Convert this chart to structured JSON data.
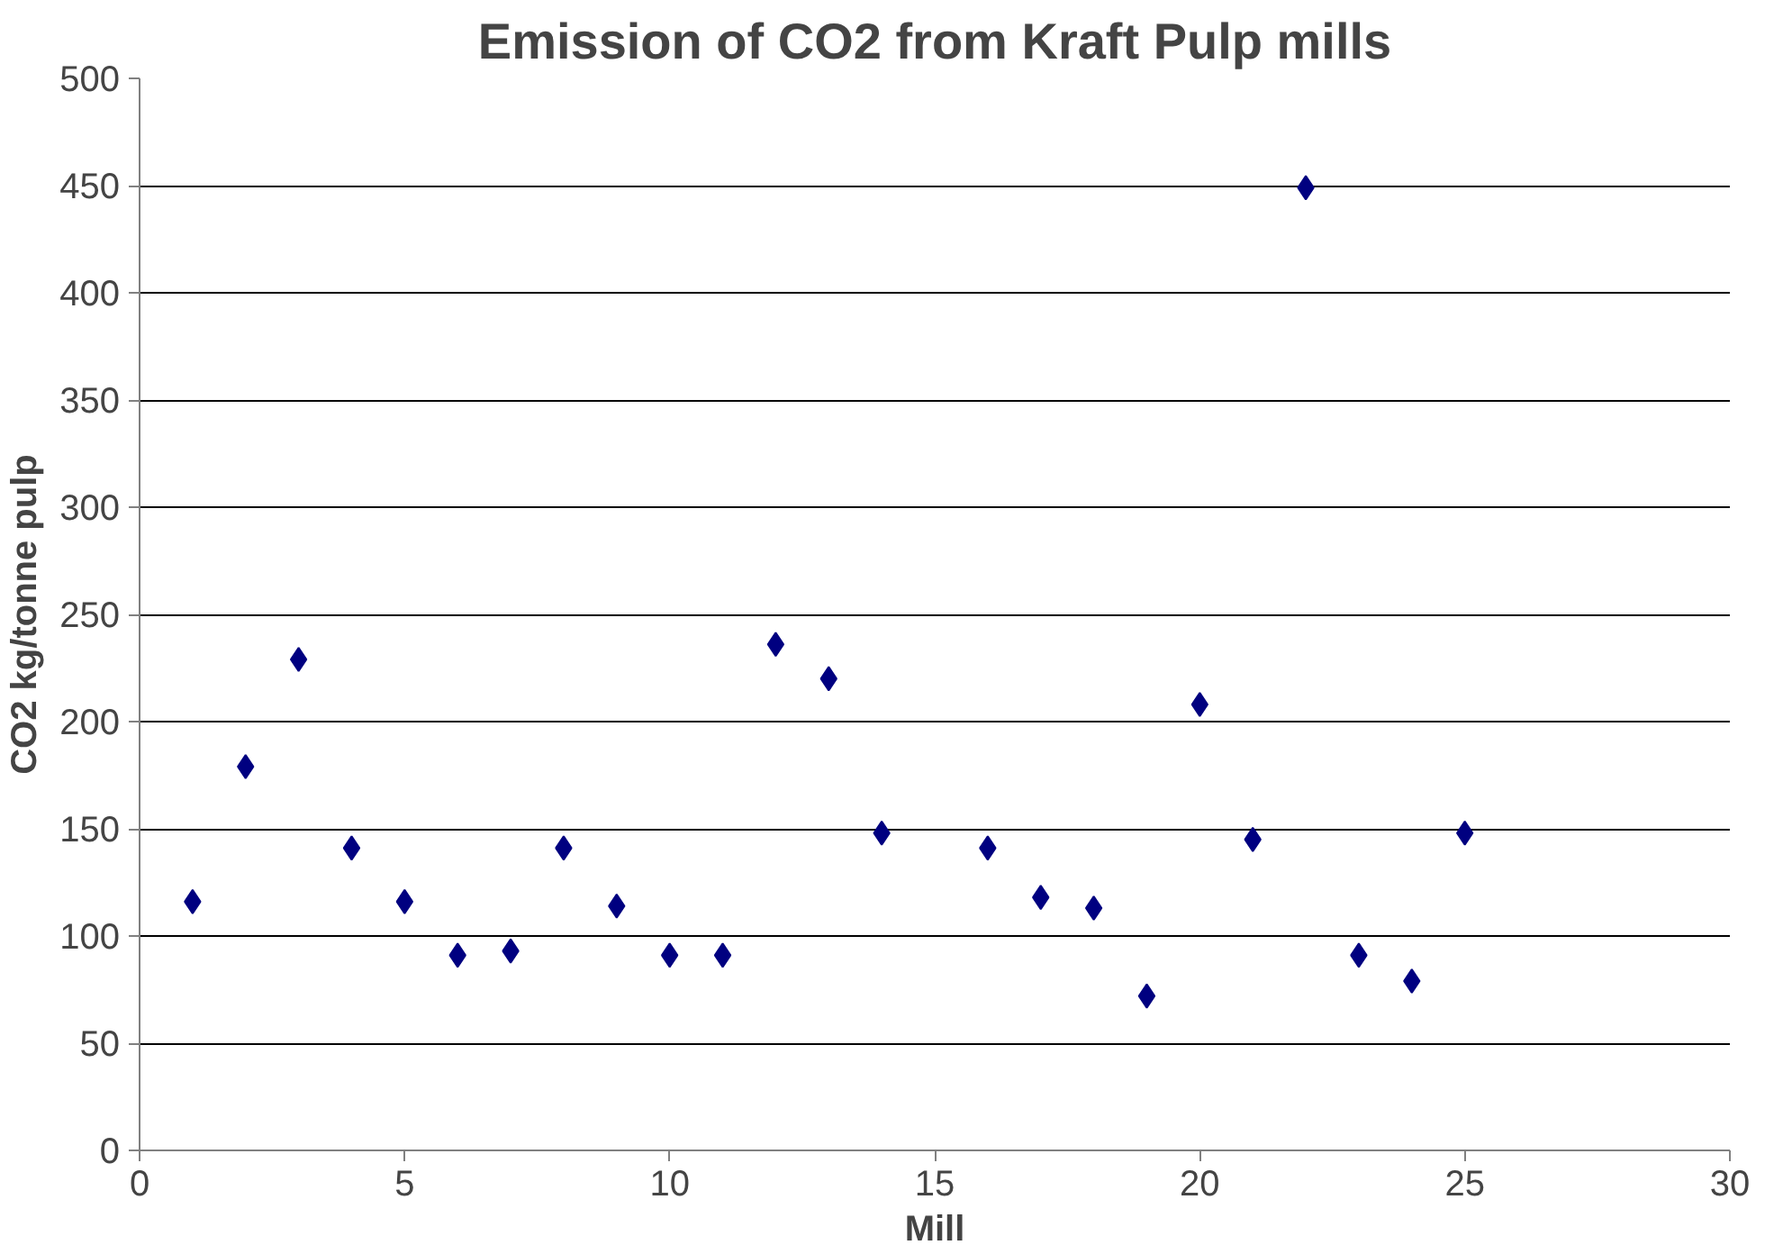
{
  "chart_data": {
    "type": "scatter",
    "title": "Emission of CO2 from Kraft Pulp mills",
    "xlabel": "Mill",
    "ylabel": "CO2 kg/tonne pulp",
    "x": [
      1,
      2,
      3,
      4,
      5,
      6,
      7,
      8,
      9,
      10,
      11,
      12,
      13,
      14,
      16,
      17,
      18,
      19,
      20,
      21,
      22,
      23,
      24,
      25
    ],
    "series": [
      {
        "color": "#000080",
        "values": [
          116,
          179,
          229,
          141,
          116,
          91,
          93,
          141,
          114,
          91,
          91,
          236,
          220,
          148,
          141,
          118,
          113,
          72,
          208,
          145,
          449,
          91,
          79,
          148
        ]
      }
    ],
    "xlim": [
      0,
      30
    ],
    "xticks": [
      0,
      5,
      10,
      15,
      20,
      25,
      30
    ],
    "ylim": [
      0,
      500
    ],
    "yticks": [
      0,
      50,
      100,
      150,
      200,
      250,
      300,
      350,
      400,
      450,
      500
    ],
    "grid": "y",
    "marker": "diamond"
  }
}
